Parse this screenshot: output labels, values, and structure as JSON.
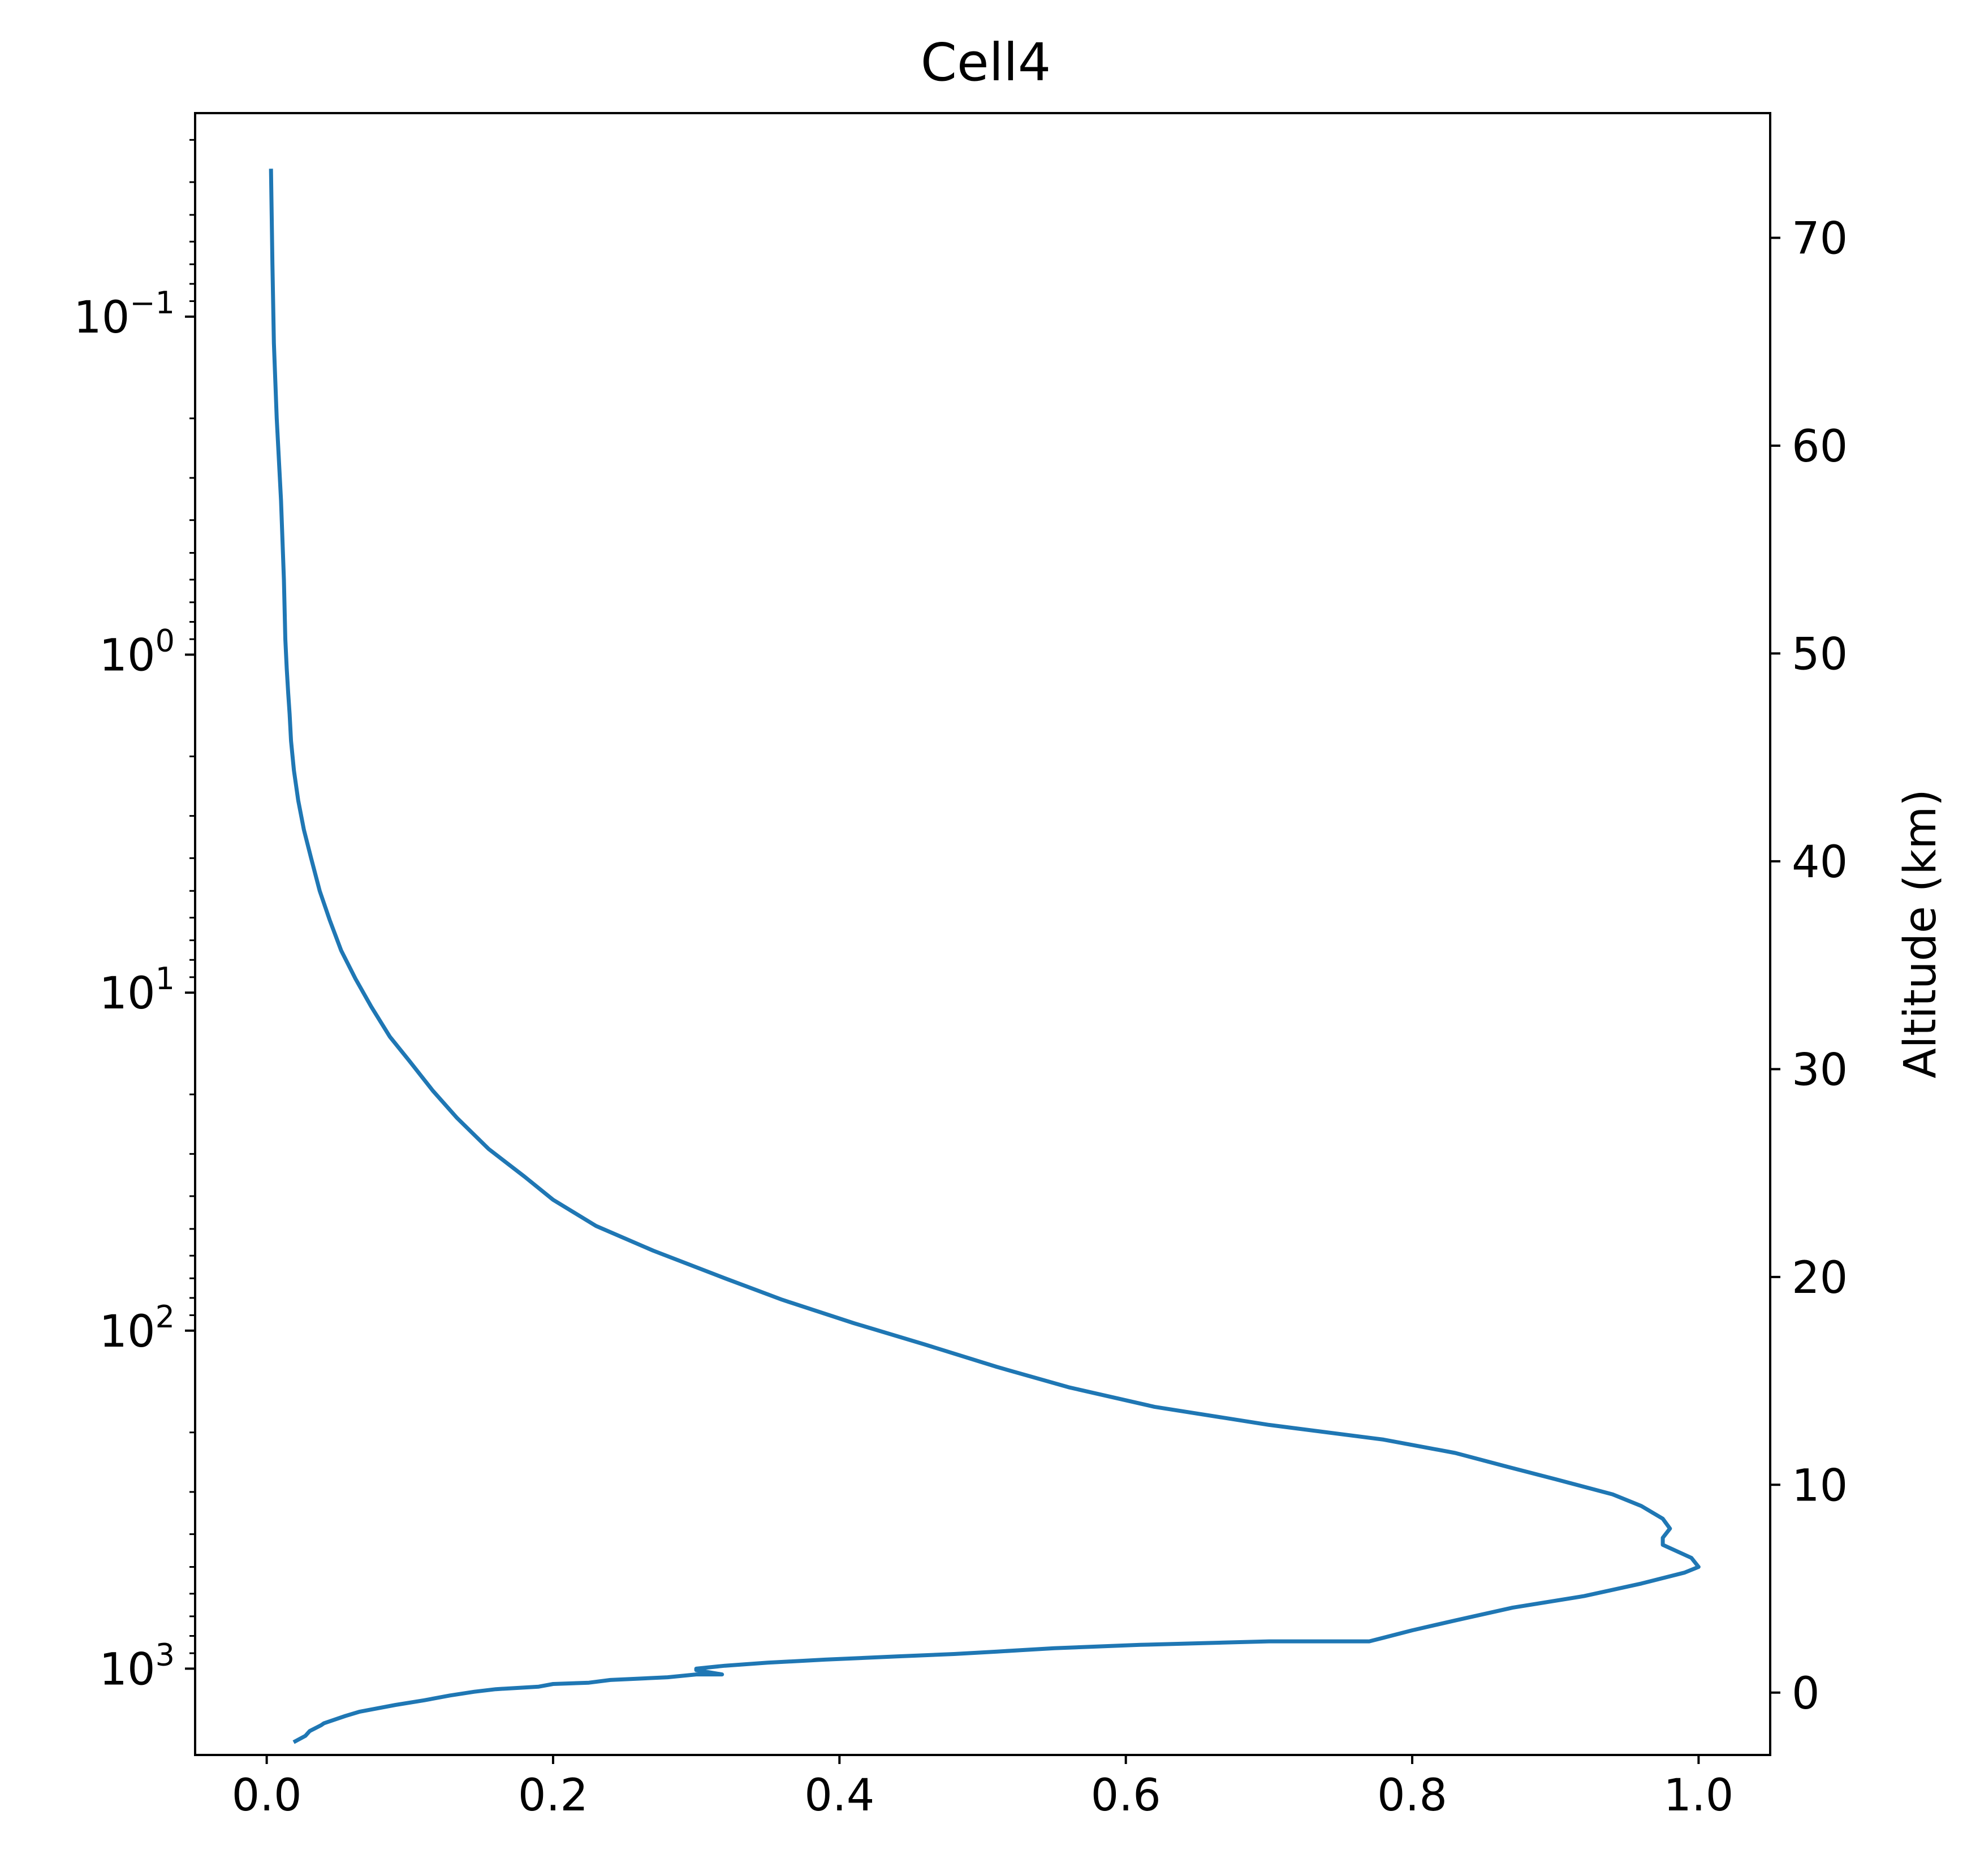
{
  "chart_data": {
    "type": "line",
    "title": "Cell4",
    "xlabel": "",
    "ylabel": "",
    "ylabel_right": "Altitude (km)",
    "xlim": [
      -0.05,
      1.05
    ],
    "ylim": [
      1800,
      0.025
    ],
    "y_scale": "log",
    "y_inverted": true,
    "ylim_right": [
      -3.0,
      76.0
    ],
    "grid": false,
    "line_color": "#1f77b4",
    "x_ticks": [
      {
        "value": 0.0,
        "label": "0.0"
      },
      {
        "value": 0.2,
        "label": "0.2"
      },
      {
        "value": 0.4,
        "label": "0.4"
      },
      {
        "value": 0.6,
        "label": "0.6"
      },
      {
        "value": 0.8,
        "label": "0.8"
      },
      {
        "value": 1.0,
        "label": "1.0"
      }
    ],
    "y_ticks": [
      {
        "value": 0.1,
        "base": "10",
        "exp": "−1"
      },
      {
        "value": 1,
        "base": "10",
        "exp": "0"
      },
      {
        "value": 10,
        "base": "10",
        "exp": "1"
      },
      {
        "value": 100,
        "base": "10",
        "exp": "2"
      },
      {
        "value": 1000,
        "base": "10",
        "exp": "3"
      }
    ],
    "y_right_ticks": [
      {
        "value": 0,
        "label": "0"
      },
      {
        "value": 10,
        "label": "10"
      },
      {
        "value": 20,
        "label": "20"
      },
      {
        "value": 30,
        "label": "30"
      },
      {
        "value": 40,
        "label": "40"
      },
      {
        "value": 50,
        "label": "50"
      },
      {
        "value": 60,
        "label": "60"
      },
      {
        "value": 70,
        "label": "70"
      }
    ],
    "series": [
      {
        "x": [
          0.003,
          0.004,
          0.005,
          0.007,
          0.01,
          0.012,
          0.013,
          0.014,
          0.015,
          0.016,
          0.017,
          0.019,
          0.022,
          0.026,
          0.031,
          0.037,
          0.044,
          0.052,
          0.062,
          0.073,
          0.086,
          0.1,
          0.116,
          0.133,
          0.155,
          0.18,
          0.2,
          0.23,
          0.27,
          0.32,
          0.36,
          0.41,
          0.46,
          0.51,
          0.56,
          0.62,
          0.7,
          0.78,
          0.83,
          0.87,
          0.9,
          0.94,
          0.96,
          0.975,
          0.98,
          0.975,
          0.975,
          0.995,
          1.0,
          0.99,
          0.96,
          0.92,
          0.87,
          0.83,
          0.8,
          0.78,
          0.77,
          0.7,
          0.61,
          0.55,
          0.51,
          0.48,
          0.44,
          0.39,
          0.35,
          0.32,
          0.3,
          0.3,
          0.318,
          0.3,
          0.28,
          0.24,
          0.225,
          0.2,
          0.19,
          0.16,
          0.145,
          0.128,
          0.11,
          0.09,
          0.065,
          0.055,
          0.04,
          0.038,
          0.03,
          0.027,
          0.02
        ],
        "y": [
          0.037,
          0.07,
          0.12,
          0.2,
          0.35,
          0.6,
          0.9,
          1.1,
          1.3,
          1.5,
          1.8,
          2.2,
          2.7,
          3.3,
          4.0,
          5.0,
          6.1,
          7.5,
          9.1,
          11.0,
          13.5,
          16.0,
          19.5,
          23.5,
          29,
          35,
          41,
          49,
          58,
          70,
          81,
          95,
          110,
          128,
          147,
          168,
          190,
          210,
          230,
          255,
          275,
          305,
          330,
          360,
          385,
          410,
          430,
          470,
          500,
          520,
          560,
          610,
          660,
          720,
          770,
          810,
          830,
          830,
          850,
          870,
          890,
          905,
          920,
          940,
          960,
          980,
          1000,
          1010,
          1040,
          1040,
          1060,
          1080,
          1100,
          1110,
          1130,
          1150,
          1170,
          1200,
          1240,
          1280,
          1340,
          1380,
          1450,
          1470,
          1530,
          1580,
          1640
        ]
      }
    ]
  }
}
